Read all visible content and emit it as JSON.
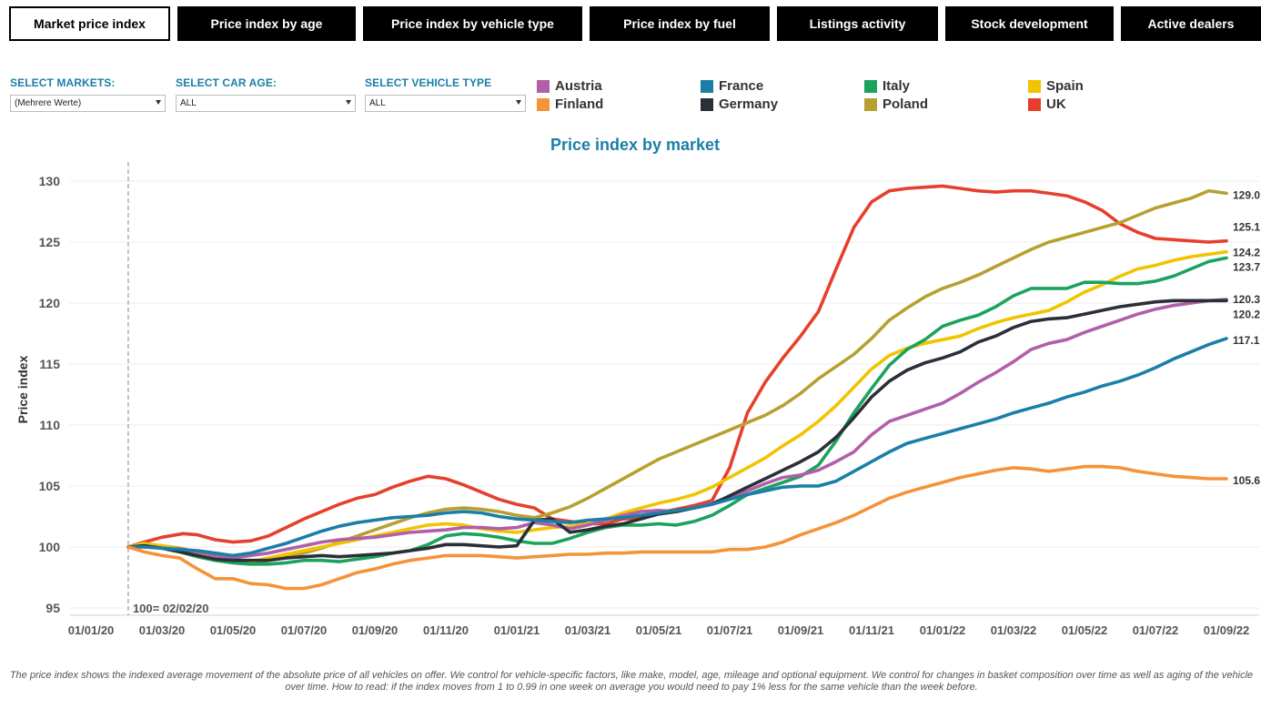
{
  "tabs": [
    {
      "label": "Market price index",
      "active": true
    },
    {
      "label": "Price index by age",
      "active": false
    },
    {
      "label": "Price index by vehicle type",
      "active": false
    },
    {
      "label": "Price index by fuel",
      "active": false
    },
    {
      "label": "Listings activity",
      "active": false
    },
    {
      "label": "Stock development",
      "active": false
    },
    {
      "label": "Active dealers",
      "active": false
    }
  ],
  "filters": {
    "markets": {
      "label": "SELECT MARKETS:",
      "value": "(Mehrere Werte)"
    },
    "car_age": {
      "label": "SELECT CAR AGE:",
      "value": "ALL"
    },
    "vehicle_type": {
      "label": "SELECT VEHICLE TYPE",
      "value": "ALL"
    }
  },
  "legend": [
    {
      "name": "Austria",
      "color": "#b05fa8"
    },
    {
      "name": "France",
      "color": "#1a7fa8"
    },
    {
      "name": "Italy",
      "color": "#1aa35c"
    },
    {
      "name": "Spain",
      "color": "#f2c300"
    },
    {
      "name": "Finland",
      "color": "#f5923a"
    },
    {
      "name": "Germany",
      "color": "#2b3038"
    },
    {
      "name": "Poland",
      "color": "#b8a030"
    },
    {
      "name": "UK",
      "color": "#e5402d"
    }
  ],
  "footnote": "The price index shows the indexed average movement of the absolute price of all vehicles on offer. We control for vehicle-specific factors, like make, model, age, mileage and optional equipment. We control for changes in basket composition over time as well as aging of the vehicle over time. How to read: if the index moves from 1 to 0.99 in one week on average you would need to pay 1% less for the same vehicle than the week before.",
  "chart_data": {
    "type": "line",
    "title": "Price index by market",
    "xlabel": "",
    "ylabel": "Price index",
    "ylim": [
      95,
      130
    ],
    "yticks": [
      95,
      100,
      105,
      110,
      115,
      120,
      125,
      130
    ],
    "x_range": [
      "2020-01-01",
      "2022-09-30"
    ],
    "xtick_labels": [
      "01/01/20",
      "01/03/20",
      "01/05/20",
      "01/07/20",
      "01/09/20",
      "01/11/20",
      "01/01/21",
      "01/03/21",
      "01/05/21",
      "01/07/21",
      "01/09/21",
      "01/11/21",
      "01/01/22",
      "01/03/22",
      "01/05/22",
      "01/07/22",
      "01/09/22"
    ],
    "x_unit": "months since 01/01/20",
    "reference_line": {
      "x": 1.05,
      "label": "100= 02/02/20"
    },
    "grid": "horizontal",
    "series": [
      {
        "name": "UK",
        "color": "#e5402d",
        "end_label": "125.1",
        "x": [
          1.05,
          1.5,
          2,
          2.6,
          3,
          3.5,
          4,
          4.5,
          5,
          5.5,
          6,
          6.5,
          7,
          7.5,
          8,
          8.5,
          9,
          9.5,
          10,
          10.5,
          11,
          11.5,
          12,
          12.5,
          13,
          13.5,
          14,
          14.5,
          15,
          15.5,
          16,
          16.5,
          17,
          17.5,
          18,
          18.5,
          19,
          19.5,
          20,
          20.5,
          21,
          21.5,
          22,
          22.5,
          23,
          23.5,
          24,
          24.5,
          25,
          25.5,
          26,
          26.5,
          27,
          27.5,
          28,
          28.5,
          29,
          29.5,
          30,
          30.5,
          31,
          31.5,
          32
        ],
        "y": [
          100,
          100.4,
          100.8,
          101.1,
          101,
          100.6,
          100.4,
          100.5,
          100.9,
          101.6,
          102.3,
          102.9,
          103.5,
          104,
          104.3,
          104.9,
          105.4,
          105.8,
          105.6,
          105.1,
          104.5,
          103.9,
          103.5,
          103.2,
          102.3,
          102.1,
          101.9,
          101.9,
          102.3,
          102.4,
          102.8,
          103.1,
          103.4,
          103.8,
          106.5,
          111,
          113.5,
          115.5,
          117.3,
          119.3,
          122.8,
          126.2,
          128.3,
          129.2,
          129.4,
          129.5,
          129.6,
          129.4,
          129.2,
          129.1,
          129.2,
          129.2,
          129,
          128.8,
          128.3,
          127.6,
          126.5,
          125.8,
          125.3,
          125.2,
          125.1,
          125,
          125.1
        ]
      },
      {
        "name": "Poland",
        "color": "#b8a030",
        "end_label": "129.0",
        "x": [
          1.05,
          1.5,
          2,
          2.5,
          3,
          3.5,
          4,
          4.5,
          5,
          5.5,
          6,
          6.5,
          7,
          7.5,
          8,
          8.5,
          9,
          9.5,
          10,
          10.5,
          11,
          11.5,
          12,
          12.5,
          13,
          13.5,
          14,
          14.5,
          15,
          15.5,
          16,
          16.5,
          17,
          17.5,
          18,
          18.5,
          19,
          19.5,
          20,
          20.5,
          21,
          21.5,
          22,
          22.5,
          23,
          23.5,
          24,
          24.5,
          25,
          25.5,
          26,
          26.5,
          27,
          27.5,
          28,
          28.5,
          29,
          29.5,
          30,
          30.5,
          31,
          31.5,
          32
        ],
        "y": [
          100,
          100.2,
          100.1,
          99.9,
          99.6,
          99.1,
          98.7,
          98.6,
          98.9,
          99.2,
          99.5,
          99.9,
          100.4,
          100.9,
          101.4,
          101.9,
          102.4,
          102.8,
          103.1,
          103.2,
          103.1,
          102.9,
          102.6,
          102.4,
          102.8,
          103.3,
          104,
          104.8,
          105.6,
          106.4,
          107.2,
          107.8,
          108.4,
          109,
          109.6,
          110.2,
          110.8,
          111.6,
          112.6,
          113.8,
          114.8,
          115.8,
          117.1,
          118.6,
          119.6,
          120.5,
          121.2,
          121.7,
          122.3,
          123,
          123.7,
          124.4,
          125,
          125.4,
          125.8,
          126.2,
          126.6,
          127.2,
          127.8,
          128.2,
          128.6,
          129.2,
          129
        ]
      },
      {
        "name": "Spain",
        "color": "#f2c300",
        "end_label": "124.2",
        "x": [
          1.05,
          1.5,
          2,
          2.5,
          3,
          3.5,
          4,
          4.5,
          5,
          5.5,
          6,
          6.5,
          7,
          7.5,
          8,
          8.5,
          9,
          9.5,
          10,
          10.5,
          11,
          11.5,
          12,
          12.5,
          13,
          13.5,
          14,
          14.5,
          15,
          15.5,
          16,
          16.5,
          17,
          17.5,
          18,
          18.5,
          19,
          19.5,
          20,
          20.5,
          21,
          21.5,
          22,
          22.5,
          23,
          23.5,
          24,
          24.5,
          25,
          25.5,
          26,
          26.5,
          27,
          27.5,
          28,
          28.5,
          29,
          29.5,
          30,
          30.5,
          31,
          31.5,
          32
        ],
        "y": [
          100,
          100.3,
          100.1,
          99.8,
          99.4,
          99,
          98.8,
          98.8,
          99.1,
          99.4,
          99.7,
          100,
          100.3,
          100.6,
          100.9,
          101.2,
          101.5,
          101.8,
          101.9,
          101.8,
          101.5,
          101.3,
          101.2,
          101.4,
          101.6,
          101.7,
          101.9,
          102.3,
          102.8,
          103.2,
          103.6,
          103.9,
          104.3,
          104.9,
          105.7,
          106.5,
          107.3,
          108.3,
          109.2,
          110.3,
          111.6,
          113.1,
          114.6,
          115.7,
          116.3,
          116.7,
          117,
          117.3,
          117.9,
          118.4,
          118.8,
          119.1,
          119.4,
          120.1,
          120.9,
          121.5,
          122.2,
          122.8,
          123.1,
          123.5,
          123.8,
          124,
          124.2
        ]
      },
      {
        "name": "Italy",
        "color": "#1aa35c",
        "end_label": "123.7",
        "x": [
          1.05,
          1.5,
          2,
          2.5,
          3,
          3.5,
          4,
          4.5,
          5,
          5.5,
          6,
          6.5,
          7,
          7.5,
          8,
          8.5,
          9,
          9.5,
          10,
          10.5,
          11,
          11.5,
          12,
          12.5,
          13,
          13.5,
          14,
          14.5,
          15,
          15.5,
          16,
          16.5,
          17,
          17.5,
          18,
          18.5,
          19,
          19.5,
          20,
          20.5,
          21,
          21.5,
          22,
          22.5,
          23,
          23.5,
          24,
          24.5,
          25,
          25.5,
          26,
          26.5,
          27,
          27.5,
          28,
          28.5,
          29,
          29.5,
          30,
          30.5,
          31,
          31.5,
          32
        ],
        "y": [
          100,
          100.1,
          99.9,
          99.6,
          99.2,
          98.9,
          98.7,
          98.6,
          98.6,
          98.7,
          98.9,
          98.9,
          98.8,
          99,
          99.2,
          99.5,
          99.7,
          100.2,
          100.9,
          101.1,
          101,
          100.8,
          100.5,
          100.3,
          100.3,
          100.7,
          101.2,
          101.6,
          101.8,
          101.8,
          101.9,
          101.8,
          102.1,
          102.6,
          103.4,
          104.3,
          104.8,
          105.3,
          105.8,
          106.7,
          108.7,
          111,
          113,
          114.9,
          116.2,
          117,
          118.1,
          118.6,
          119,
          119.7,
          120.6,
          121.2,
          121.2,
          121.2,
          121.7,
          121.7,
          121.6,
          121.6,
          121.8,
          122.2,
          122.8,
          123.4,
          123.7
        ]
      },
      {
        "name": "Austria",
        "color": "#b05fa8",
        "end_label": "120.3",
        "x": [
          1.05,
          1.5,
          2,
          2.5,
          3,
          3.5,
          4,
          4.5,
          5,
          5.5,
          6,
          6.5,
          7,
          7.5,
          8,
          8.5,
          9,
          9.5,
          10,
          10.5,
          11,
          11.5,
          12,
          12.5,
          13,
          13.5,
          14,
          14.5,
          15,
          15.5,
          16,
          16.5,
          17,
          17.5,
          18,
          18.5,
          19,
          19.5,
          20,
          20.5,
          21,
          21.5,
          22,
          22.5,
          23,
          23.5,
          24,
          24.5,
          25,
          25.5,
          26,
          26.5,
          27,
          27.5,
          28,
          28.5,
          29,
          29.5,
          30,
          30.5,
          31,
          31.5,
          32
        ],
        "y": [
          100,
          100,
          99.9,
          99.8,
          99.6,
          99.3,
          99.1,
          99.3,
          99.5,
          99.8,
          100.1,
          100.4,
          100.6,
          100.7,
          100.8,
          101,
          101.2,
          101.3,
          101.4,
          101.6,
          101.6,
          101.5,
          101.6,
          102,
          101.8,
          101.5,
          101.8,
          102.2,
          102.6,
          102.9,
          103,
          102.9,
          103.2,
          103.6,
          104.1,
          104.6,
          105.2,
          105.7,
          105.9,
          106.3,
          107,
          107.8,
          109.2,
          110.3,
          110.8,
          111.3,
          111.8,
          112.6,
          113.5,
          114.3,
          115.2,
          116.2,
          116.7,
          117,
          117.6,
          118.1,
          118.6,
          119.1,
          119.5,
          119.8,
          120,
          120.2,
          120.3
        ]
      },
      {
        "name": "Germany",
        "color": "#2b3038",
        "end_label": "120.2",
        "x": [
          1.05,
          1.5,
          2,
          2.5,
          3,
          3.5,
          4,
          4.5,
          5,
          5.5,
          6,
          6.5,
          7,
          7.5,
          8,
          8.5,
          9,
          9.5,
          10,
          10.5,
          11,
          11.5,
          12,
          12.5,
          13,
          13.5,
          14,
          14.5,
          15,
          15.5,
          16,
          16.5,
          17,
          17.5,
          18,
          18.5,
          19,
          19.5,
          20,
          20.5,
          21,
          21.5,
          22,
          22.5,
          23,
          23.5,
          24,
          24.5,
          25,
          25.5,
          26,
          26.5,
          27,
          27.5,
          28,
          28.5,
          29,
          29.5,
          30,
          30.5,
          31,
          31.5,
          32
        ],
        "y": [
          100,
          100.1,
          99.9,
          99.6,
          99.3,
          99,
          98.9,
          98.9,
          98.9,
          99.1,
          99.2,
          99.3,
          99.2,
          99.3,
          99.4,
          99.5,
          99.7,
          99.9,
          100.2,
          100.2,
          100.1,
          100,
          100.1,
          102.2,
          102.3,
          101.2,
          101.4,
          101.7,
          101.9,
          102.3,
          102.7,
          102.9,
          103.2,
          103.5,
          104.2,
          104.9,
          105.6,
          106.3,
          107,
          107.8,
          109,
          110.6,
          112.3,
          113.6,
          114.5,
          115.1,
          115.5,
          116,
          116.8,
          117.3,
          118,
          118.5,
          118.7,
          118.8,
          119.1,
          119.4,
          119.7,
          119.9,
          120.1,
          120.2,
          120.2,
          120.2,
          120.2
        ]
      },
      {
        "name": "France",
        "color": "#1a7fa8",
        "end_label": "117.1",
        "x": [
          1.05,
          1.5,
          2,
          2.5,
          3,
          3.5,
          4,
          4.5,
          5,
          5.5,
          6,
          6.5,
          7,
          7.5,
          8,
          8.5,
          9,
          9.5,
          10,
          10.5,
          11,
          11.5,
          12,
          12.5,
          13,
          13.5,
          14,
          14.5,
          15,
          15.5,
          16,
          16.5,
          17,
          17.5,
          18,
          18.5,
          19,
          19.5,
          20,
          20.5,
          21,
          21.5,
          22,
          22.5,
          23,
          23.5,
          24,
          24.5,
          25,
          25.5,
          26,
          26.5,
          27,
          27.5,
          28,
          28.5,
          29,
          29.5,
          30,
          30.5,
          31,
          31.5,
          32
        ],
        "y": [
          100,
          100,
          99.9,
          99.8,
          99.7,
          99.5,
          99.3,
          99.5,
          99.9,
          100.3,
          100.8,
          101.3,
          101.7,
          102,
          102.2,
          102.4,
          102.5,
          102.6,
          102.8,
          102.9,
          102.8,
          102.5,
          102.3,
          102.2,
          102.1,
          102,
          102.2,
          102.3,
          102.4,
          102.6,
          102.8,
          103,
          103.2,
          103.5,
          103.9,
          104.3,
          104.6,
          104.9,
          105,
          105,
          105.4,
          106.2,
          107,
          107.8,
          108.5,
          108.9,
          109.3,
          109.7,
          110.1,
          110.5,
          111,
          111.4,
          111.8,
          112.3,
          112.7,
          113.2,
          113.6,
          114.1,
          114.7,
          115.4,
          116,
          116.6,
          117.1
        ]
      },
      {
        "name": "Finland",
        "color": "#f5923a",
        "end_label": "105.6",
        "x": [
          1.05,
          1.5,
          2,
          2.5,
          3,
          3.5,
          4,
          4.5,
          5,
          5.5,
          6,
          6.5,
          7,
          7.5,
          8,
          8.5,
          9,
          9.5,
          10,
          10.5,
          11,
          11.5,
          12,
          12.5,
          13,
          13.5,
          14,
          14.5,
          15,
          15.5,
          16,
          16.5,
          17,
          17.5,
          18,
          18.5,
          19,
          19.5,
          20,
          20.5,
          21,
          21.5,
          22,
          22.5,
          23,
          23.5,
          24,
          24.5,
          25,
          25.5,
          26,
          26.5,
          27,
          27.5,
          28,
          28.5,
          29,
          29.5,
          30,
          30.5,
          31,
          31.5,
          32
        ],
        "y": [
          100,
          99.6,
          99.3,
          99.1,
          98.2,
          97.4,
          97.4,
          97,
          96.9,
          96.6,
          96.6,
          96.9,
          97.4,
          97.9,
          98.2,
          98.6,
          98.9,
          99.1,
          99.3,
          99.3,
          99.3,
          99.2,
          99.1,
          99.2,
          99.3,
          99.4,
          99.4,
          99.5,
          99.5,
          99.6,
          99.6,
          99.6,
          99.6,
          99.6,
          99.8,
          99.8,
          100,
          100.4,
          101,
          101.5,
          102,
          102.6,
          103.3,
          104,
          104.5,
          104.9,
          105.3,
          105.7,
          106,
          106.3,
          106.5,
          106.4,
          106.2,
          106.4,
          106.6,
          106.6,
          106.5,
          106.2,
          106,
          105.8,
          105.7,
          105.6,
          105.6
        ]
      }
    ]
  }
}
